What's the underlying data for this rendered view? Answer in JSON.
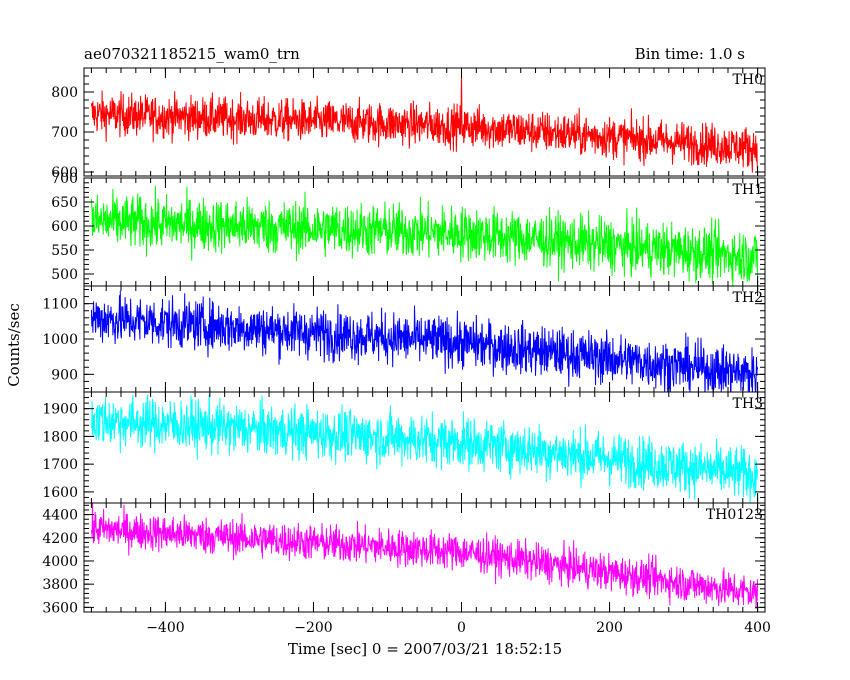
{
  "header": {
    "title": "ae070321185215_wam0_trn",
    "bin_time": "Bin time: 1.0 s"
  },
  "chart_data": {
    "type": "line",
    "xlabel": "Time [sec] 0 = 2007/03/21 18:52:15",
    "ylabel": "Counts/sec",
    "xlim": [
      -510,
      410
    ],
    "xticks": [
      -400,
      -200,
      0,
      200,
      400
    ],
    "x_range": [
      -500,
      400
    ],
    "bin_time": 1.0,
    "panels": [
      {
        "name": "TH0",
        "color": "#ff0000",
        "ylim": [
          590,
          860
        ],
        "yticks": [
          600,
          700,
          800
        ],
        "trend": [
          {
            "x": -500,
            "y": 745
          },
          {
            "x": 0,
            "y": 715
          },
          {
            "x": 400,
            "y": 660
          }
        ],
        "noise_amplitude": 28,
        "spike": {
          "x": 0,
          "y": 860
        }
      },
      {
        "name": "TH1",
        "color": "#00ff00",
        "ylim": [
          475,
          700
        ],
        "yticks": [
          500,
          550,
          600,
          650,
          700
        ],
        "trend": [
          {
            "x": -500,
            "y": 610
          },
          {
            "x": 0,
            "y": 585
          },
          {
            "x": 400,
            "y": 535
          }
        ],
        "noise_amplitude": 30
      },
      {
        "name": "TH2",
        "color": "#0000ff",
        "ylim": [
          850,
          1150
        ],
        "yticks": [
          900,
          1000,
          1100
        ],
        "trend": [
          {
            "x": -500,
            "y": 1060
          },
          {
            "x": 0,
            "y": 990
          },
          {
            "x": 400,
            "y": 900
          }
        ],
        "noise_amplitude": 38
      },
      {
        "name": "TH3",
        "color": "#00ffff",
        "ylim": [
          1560,
          1960
        ],
        "yticks": [
          1600,
          1700,
          1800,
          1900
        ],
        "trend": [
          {
            "x": -500,
            "y": 1860
          },
          {
            "x": 0,
            "y": 1780
          },
          {
            "x": 400,
            "y": 1660
          }
        ],
        "noise_amplitude": 50
      },
      {
        "name": "TH0123",
        "color": "#ff00ff",
        "ylim": [
          3560,
          4500
        ],
        "yticks": [
          3600,
          3800,
          4000,
          4200,
          4400
        ],
        "trend": [
          {
            "x": -500,
            "y": 4280
          },
          {
            "x": 0,
            "y": 4080
          },
          {
            "x": 400,
            "y": 3720
          }
        ],
        "noise_amplitude": 85
      }
    ]
  }
}
